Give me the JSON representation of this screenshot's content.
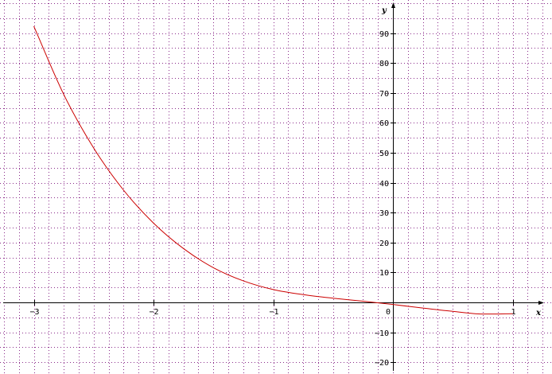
{
  "chart_data": {
    "type": "line",
    "title": "",
    "xlabel": "x",
    "ylabel": "y",
    "xlim": [
      -3.25,
      1.25
    ],
    "ylim": [
      -23,
      100
    ],
    "grid": true,
    "grid_minor_x": 0.125,
    "grid_minor_y": 5,
    "x_ticks": [
      -3,
      -2,
      -1,
      1
    ],
    "x_tick_labels": [
      "−3",
      "−2",
      "−1",
      "1"
    ],
    "y_ticks": [
      -20,
      -10,
      10,
      20,
      30,
      40,
      50,
      60,
      70,
      80,
      90
    ],
    "y_tick_labels": [
      "−20",
      "−10",
      "10",
      "20",
      "30",
      "40",
      "50",
      "60",
      "70",
      "80",
      "90"
    ],
    "origin_label": "0",
    "colors": {
      "curve": "#cc0000",
      "grid": "#8a2b8a",
      "axis": "#000000"
    },
    "series": [
      {
        "x": [
          -3.0,
          -2.75,
          -2.5,
          -2.25,
          -2.0,
          -1.75,
          -1.5,
          -1.25,
          -1.0,
          -0.75,
          -0.5,
          -0.25,
          0.0,
          0.25,
          0.5,
          0.75,
          1.0
        ],
        "y": [
          92.3,
          69.5,
          51.6,
          37.5,
          26.5,
          18.0,
          11.6,
          7.2,
          4.3,
          2.6,
          1.4,
          0.4,
          -0.7,
          -1.9,
          -3.0,
          -3.9,
          -3.8
        ]
      }
    ]
  }
}
